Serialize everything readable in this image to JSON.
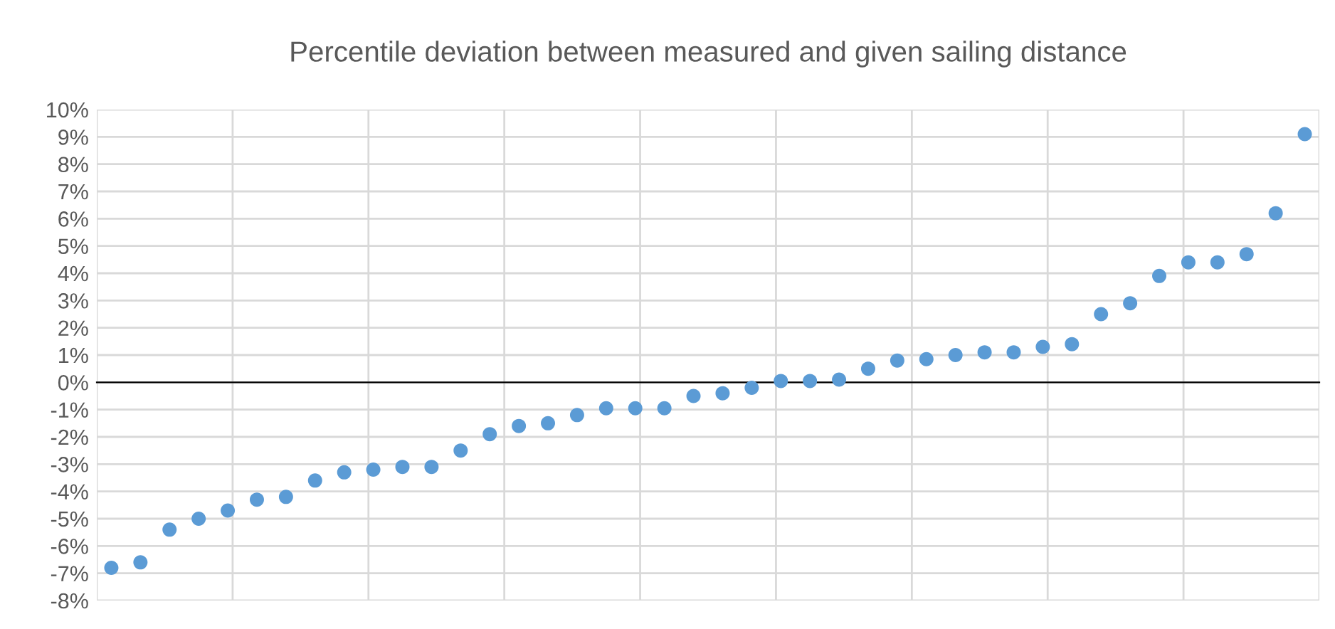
{
  "chart_data": {
    "type": "scatter",
    "title": "Percentile deviation between measured and given sailing distance",
    "categories": [
      null,
      null,
      null,
      null,
      null,
      null,
      null,
      null,
      null,
      null,
      null,
      null,
      null,
      null,
      null,
      null,
      null,
      null,
      null,
      null,
      null,
      null,
      null,
      null,
      null,
      null,
      null,
      null,
      null,
      null,
      null,
      null,
      null,
      null,
      null,
      null,
      null,
      null,
      null,
      null,
      null,
      null
    ],
    "series": [
      {
        "color": "#5b9bd5",
        "values": [
          -6.8,
          -6.6,
          -5.4,
          -5.0,
          -4.7,
          -4.3,
          -4.2,
          -3.6,
          -3.3,
          -3.2,
          -3.1,
          -3.1,
          -2.5,
          -1.9,
          -1.6,
          -1.5,
          -1.2,
          -0.95,
          -0.95,
          -0.95,
          -0.5,
          -0.4,
          -0.2,
          0.05,
          0.05,
          0.1,
          0.5,
          0.8,
          0.85,
          1.0,
          1.1,
          1.1,
          1.3,
          1.4,
          2.5,
          2.9,
          3.9,
          4.4,
          4.4,
          4.7,
          6.2,
          9.1
        ]
      }
    ],
    "ylim": [
      -8,
      10
    ],
    "yticks": [
      {
        "value": -8,
        "label": "-8%"
      },
      {
        "value": -7,
        "label": "-7%"
      },
      {
        "value": -6,
        "label": "-6%"
      },
      {
        "value": -5,
        "label": "-5%"
      },
      {
        "value": -4,
        "label": "-4%"
      },
      {
        "value": -3,
        "label": "-3%"
      },
      {
        "value": -2,
        "label": "-2%"
      },
      {
        "value": -1,
        "label": "-1%"
      },
      {
        "value": 0,
        "label": "0%"
      },
      {
        "value": 1,
        "label": "1%"
      },
      {
        "value": 2,
        "label": "2%"
      },
      {
        "value": 3,
        "label": "3%"
      },
      {
        "value": 4,
        "label": "4%"
      },
      {
        "value": 5,
        "label": "5%"
      },
      {
        "value": 6,
        "label": "6%"
      },
      {
        "value": 7,
        "label": "7%"
      },
      {
        "value": 8,
        "label": "8%"
      },
      {
        "value": 9,
        "label": "9%"
      },
      {
        "value": 10,
        "label": "10%"
      }
    ],
    "tick_labels": "y",
    "grid": true,
    "marker": "circle"
  }
}
